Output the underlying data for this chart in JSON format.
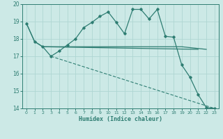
{
  "background_color": "#cce9e6",
  "grid_color": "#afd6d2",
  "line_color": "#2e7d72",
  "xlabel": "Humidex (Indice chaleur)",
  "xlim": [
    -0.5,
    23.5
  ],
  "ylim": [
    14,
    20
  ],
  "xticks": [
    0,
    1,
    2,
    3,
    4,
    5,
    6,
    7,
    8,
    9,
    10,
    11,
    12,
    13,
    14,
    15,
    16,
    17,
    18,
    19,
    20,
    21,
    22,
    23
  ],
  "yticks": [
    14,
    15,
    16,
    17,
    18,
    19,
    20
  ],
  "line1_x": [
    0,
    1,
    2,
    3,
    4,
    5,
    6,
    7,
    8,
    9,
    10,
    11,
    12,
    13,
    14,
    15,
    16,
    17,
    18,
    19,
    20,
    21,
    22
  ],
  "line1_y": [
    18.9,
    17.85,
    17.55,
    17.55,
    17.55,
    17.55,
    17.55,
    17.55,
    17.55,
    17.55,
    17.55,
    17.55,
    17.55,
    17.55,
    17.55,
    17.55,
    17.55,
    17.55,
    17.55,
    17.55,
    17.5,
    17.45,
    17.4
  ],
  "line2_x": [
    0,
    1,
    2,
    3,
    4,
    5,
    6,
    7,
    8,
    9,
    10,
    11,
    12,
    13,
    14,
    15,
    16,
    17,
    18,
    19,
    20,
    21,
    22,
    23
  ],
  "line2_y": [
    18.9,
    17.85,
    17.55,
    17.0,
    17.3,
    17.65,
    18.0,
    18.65,
    18.95,
    19.3,
    19.55,
    18.95,
    18.3,
    19.7,
    19.7,
    19.15,
    19.7,
    18.15,
    18.1,
    16.5,
    15.8,
    14.8,
    14.05,
    14.0
  ],
  "line3_x": [
    3,
    23
  ],
  "line3_y": [
    17.0,
    14.0
  ],
  "line4_x": [
    2,
    21
  ],
  "line4_y": [
    17.55,
    17.4
  ]
}
